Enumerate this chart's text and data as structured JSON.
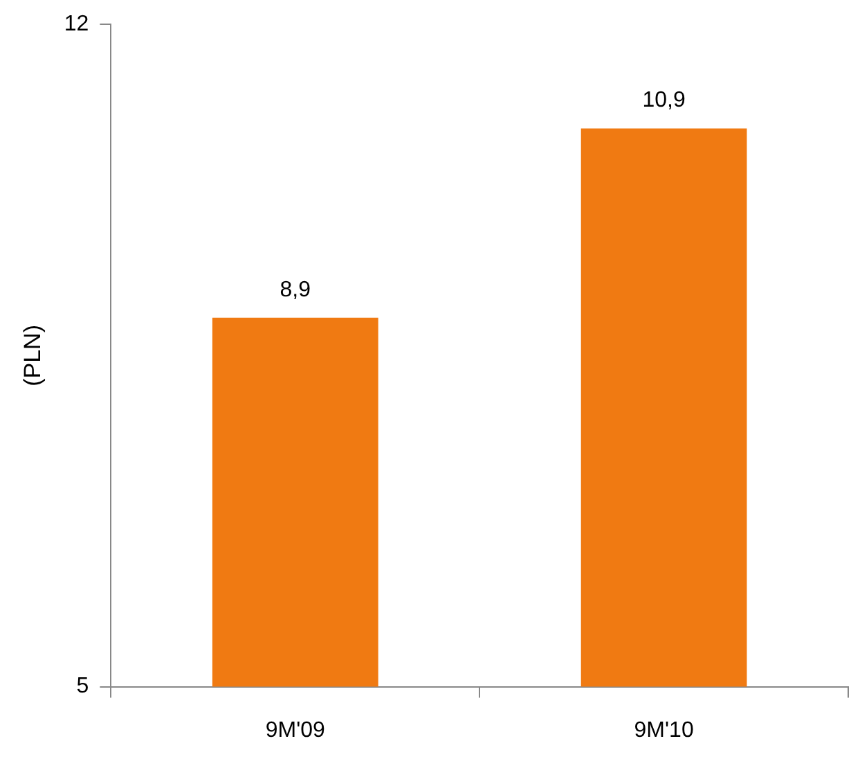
{
  "chart_data": {
    "type": "bar",
    "ylabel": "(PLN)",
    "categories": [
      "9M'09",
      "9M'10"
    ],
    "values": [
      8.9,
      10.9
    ],
    "color": "#f07a12",
    "value_labels": [
      "8,9",
      "10,9"
    ],
    "ylim": [
      5,
      12
    ],
    "yticks": [
      5,
      12
    ],
    "grid": false,
    "legend": false
  }
}
